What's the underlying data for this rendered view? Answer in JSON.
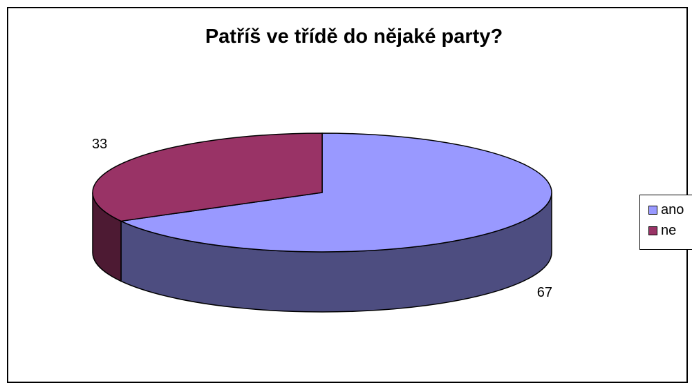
{
  "chart_data": {
    "type": "pie",
    "title": "Patříš ve třídě do nějaké party?",
    "categories": [
      "ano",
      "ne"
    ],
    "values": [
      67,
      33
    ],
    "colors": [
      "#9999ff",
      "#993366"
    ],
    "side_colors": [
      "#4d4d80",
      "#4d1a33"
    ],
    "data_labels": [
      "67",
      "33"
    ],
    "legend_position": "right",
    "style": "3d-pie"
  }
}
